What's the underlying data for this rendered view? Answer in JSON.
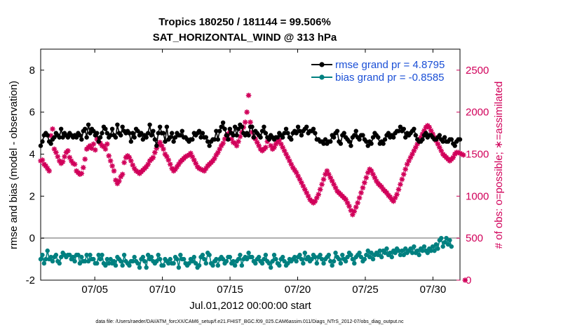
{
  "chart_data": {
    "type": "line",
    "title": [
      "Tropics 180250 / 181144 = 99.506%",
      "SAT_HORIZONTAL_WIND @ 313 hPa"
    ],
    "xlabel": "Jul.01,2012 00:00:00 start",
    "ylabel_left": "rmse and bias (model - observation)",
    "ylabel_right": "# of obs: o=possible; ∗=assimilated",
    "footer": "data file: /Users/raeder/DAI/ATM_forcXX/CAM6_setup/f.e21.FHIST_BGC.f09_025.CAM6assim.011/Diags_NTrS_2012-07/obs_diag_output.nc",
    "xlim": [
      1,
      32
    ],
    "ylim_left": [
      -2,
      9
    ],
    "ylim_right": [
      0,
      2750
    ],
    "x_ticks": [
      5,
      10,
      15,
      20,
      25,
      30
    ],
    "x_tick_labels": [
      "07/05",
      "07/10",
      "07/15",
      "07/20",
      "07/25",
      "07/30"
    ],
    "y_ticks_left": [
      -2,
      0,
      2,
      4,
      6,
      8
    ],
    "y_ticks_right": [
      0,
      500,
      1000,
      1500,
      2000,
      2500
    ],
    "legend": [
      "rmse grand pr = 4.8795",
      "bias grand pr = -0.8585"
    ],
    "colors": {
      "rmse": "#000000",
      "bias": "#008080",
      "obs": "#d1005a",
      "right_axis": "#d1005a",
      "legend_text": "#1a4fd6",
      "zero_line": "#b0b0b0"
    },
    "series": [
      {
        "name": "rmse",
        "values": [
          4.4,
          4.6,
          4.9,
          5.0,
          4.9,
          4.6,
          4.5,
          4.7,
          4.8,
          5.0,
          4.9,
          4.8,
          5.2,
          4.8,
          5.0,
          4.9,
          4.8,
          5.0,
          4.9,
          4.8,
          4.9,
          4.8,
          5.0,
          4.9,
          4.7,
          5.1,
          5.2,
          4.8,
          5.4,
          5.0,
          5.2,
          5.1,
          4.9,
          5.0,
          4.6,
          4.8,
          5.0,
          5.3,
          5.2,
          5.0,
          4.8,
          4.9,
          5.2,
          4.9,
          4.8,
          5.4,
          5.0,
          4.9,
          5.3,
          5.1,
          5.0,
          5.1,
          5.0,
          4.6,
          5.0,
          4.8,
          5.2,
          5.1,
          4.9,
          5.0,
          4.7,
          4.9,
          4.8,
          5.0,
          5.4,
          4.9,
          5.1,
          4.7,
          4.4,
          5.0,
          5.3,
          5.0,
          5.0,
          4.6,
          5.3,
          4.7,
          4.8,
          5.0,
          4.6,
          4.8,
          5.0,
          4.9,
          4.9,
          5.1,
          4.8,
          4.8,
          4.7,
          4.6,
          4.7,
          4.7,
          5.0,
          4.9,
          5.0,
          5.1,
          4.8,
          5.0,
          4.8,
          4.8,
          4.6,
          4.4,
          4.6,
          4.7,
          4.7,
          5.1,
          4.7,
          5.1,
          5.3,
          5.5,
          5.2,
          4.9,
          4.7,
          5.2,
          5.0,
          4.9,
          5.3,
          4.9,
          5.2,
          5.4,
          5.3,
          5.0,
          4.9,
          5.0,
          4.9,
          5.3,
          5.3,
          4.8,
          5.1,
          5.0,
          4.9,
          4.8,
          5.1,
          5.3,
          5.0,
          4.8,
          4.7,
          4.9,
          4.8,
          4.7,
          4.8,
          4.8,
          5.0,
          4.9,
          4.8,
          5.0,
          5.2,
          5.0,
          4.8,
          4.7,
          5.0,
          5.1,
          5.0,
          5.3,
          5.1,
          4.9,
          5.1,
          5.2,
          5.3,
          5.0,
          5.1,
          5.1,
          5.2,
          5.0,
          4.7,
          4.7,
          4.6,
          4.6,
          4.5,
          4.7,
          4.5,
          4.6,
          4.6,
          4.9,
          4.8,
          5.0,
          5.1,
          4.6,
          4.5,
          4.9,
          5.0,
          4.8,
          4.7,
          4.6,
          4.4,
          4.8,
          4.9,
          5.1,
          4.8,
          4.7,
          4.9,
          4.9,
          4.7,
          4.6,
          4.4,
          4.6,
          4.5,
          4.8,
          5.0,
          4.9,
          4.8,
          4.5,
          4.6,
          4.5,
          4.7,
          4.9,
          5.0,
          4.8,
          4.9,
          4.8,
          5.0,
          5.1,
          5.1,
          5.3,
          5.1,
          5.2,
          4.8,
          5.0,
          4.9,
          5.0,
          5.1,
          5.2,
          4.9,
          4.7,
          4.6,
          4.6,
          4.7,
          4.9,
          5.0,
          4.8,
          4.9,
          4.9,
          4.8,
          4.7,
          4.7,
          4.8,
          4.9,
          4.7,
          4.6,
          4.8,
          4.6,
          4.6,
          4.7,
          4.7,
          4.5,
          4.4,
          4.6,
          4.7,
          4.7
        ]
      },
      {
        "name": "bias",
        "values": [
          -1.0,
          -0.8,
          -1.2,
          -1.0,
          -0.6,
          -1.0,
          -0.9,
          -1.1,
          -0.9,
          -0.8,
          -1.1,
          -1.2,
          -0.9,
          -0.7,
          -0.8,
          -0.9,
          -0.8,
          -0.8,
          -1.0,
          -0.9,
          -1.1,
          -0.8,
          -0.8,
          -1.2,
          -0.9,
          -1.1,
          -1.1,
          -0.8,
          -1.1,
          -0.8,
          -1.0,
          -1.0,
          -1.2,
          -1.2,
          -0.8,
          -1.0,
          -0.8,
          -1.2,
          -1.3,
          -1.0,
          -1.2,
          -1.0,
          -1.2,
          -1.1,
          -1.3,
          -0.9,
          -1.0,
          -1.1,
          -1.3,
          -0.8,
          -1.1,
          -1.2,
          -1.3,
          -1.1,
          -1.1,
          -0.9,
          -1.1,
          -1.2,
          -1.4,
          -1.0,
          -0.9,
          -1.1,
          -1.4,
          -0.8,
          -1.0,
          -0.9,
          -1.1,
          -1.2,
          -1.1,
          -0.8,
          -1.0,
          -1.3,
          -1.3,
          -1.0,
          -1.1,
          -1.2,
          -1.0,
          -1.2,
          -1.2,
          -0.9,
          -1.0,
          -1.4,
          -0.8,
          -1.0,
          -1.0,
          -1.2,
          -1.3,
          -1.2,
          -1.0,
          -1.1,
          -0.9,
          -1.2,
          -1.4,
          -1.3,
          -0.9,
          -0.8,
          -1.0,
          -1.2,
          -0.7,
          -0.8,
          -1.2,
          -1.3,
          -1.1,
          -1.0,
          -1.3,
          -1.0,
          -0.9,
          -1.0,
          -1.2,
          -1.1,
          -0.9,
          -0.9,
          -1.2,
          -1.1,
          -1.3,
          -1.1,
          -1.0,
          -0.8,
          -1.3,
          -1.0,
          -0.9,
          -1.0,
          -0.7,
          -0.9,
          -0.9,
          -1.1,
          -1.2,
          -1.0,
          -0.9,
          -1.1,
          -1.2,
          -1.0,
          -0.8,
          -1.1,
          -1.2,
          -1.4,
          -1.1,
          -0.8,
          -1.0,
          -1.2,
          -1.3,
          -1.0,
          -0.9,
          -1.1,
          -1.3,
          -1.2,
          -1.0,
          -1.1,
          -1.0,
          -0.9,
          -1.1,
          -0.9,
          -0.8,
          -1.0,
          -1.2,
          -0.7,
          -1.0,
          -0.9,
          -1.1,
          -1.0,
          -0.8,
          -0.9,
          -1.2,
          -0.9,
          -0.8,
          -1.0,
          -1.2,
          -1.0,
          -0.9,
          -0.8,
          -1.1,
          -1.3,
          -1.1,
          -0.7,
          -0.9,
          -1.0,
          -1.2,
          -0.8,
          -1.0,
          -1.1,
          -0.9,
          -0.7,
          -0.8,
          -1.0,
          -1.2,
          -0.9,
          -0.8,
          -0.7,
          -0.9,
          -1.1,
          -1.0,
          -0.8,
          -0.6,
          -0.9,
          -0.7,
          -1.0,
          -0.8,
          -0.7,
          -0.8,
          -0.6,
          -0.9,
          -0.6,
          -0.7,
          -0.5,
          -0.8,
          -0.7,
          -0.9,
          -0.6,
          -0.7,
          -0.5,
          -0.6,
          -0.8,
          -0.6,
          -0.8,
          -0.5,
          -0.7,
          -0.6,
          -0.5,
          -0.7,
          -0.4,
          -0.7,
          -0.6,
          -0.8,
          -0.5,
          -0.6,
          -0.4,
          -0.6,
          -0.7,
          -0.5,
          -0.6,
          -0.4,
          -0.6,
          -0.3,
          -0.5,
          -0.1,
          0.0,
          -0.4,
          -0.2,
          0.0,
          -0.3,
          -0.1,
          -0.4
        ]
      },
      {
        "name": "obs_assimilated",
        "values": [
          1420,
          1430,
          1380,
          1360,
          1330,
          1300,
          1720,
          1800,
          1560,
          1520,
          1470,
          1420,
          1390,
          1410,
          1470,
          1520,
          1540,
          1460,
          1420,
          1390,
          1380,
          1300,
          1280,
          1260,
          1270,
          1340,
          1440,
          1560,
          1580,
          1600,
          1570,
          1620,
          1550,
          1680,
          1650,
          1630,
          1600,
          1590,
          1560,
          1620,
          1480,
          1420,
          1360,
          1300,
          1190,
          1150,
          1180,
          1230,
          1260,
          1400,
          1460,
          1480,
          1460,
          1420,
          1370,
          1330,
          1300,
          1290,
          1270,
          1290,
          1310,
          1330,
          1350,
          1380,
          1420,
          1440,
          1460,
          1520,
          1570,
          1610,
          1640,
          1600,
          1560,
          1500,
          1470,
          1430,
          1380,
          1330,
          1300,
          1320,
          1350,
          1380,
          1410,
          1430,
          1450,
          1470,
          1480,
          1490,
          1510,
          1470,
          1430,
          1390,
          1350,
          1330,
          1320,
          1310,
          1300,
          1330,
          1360,
          1380,
          1400,
          1420,
          1450,
          1490,
          1520,
          1560,
          1600,
          1630,
          1680,
          1720,
          1740,
          1760,
          1680,
          1640,
          1630,
          1600,
          1650,
          1710,
          1760,
          1820,
          1880,
          2000,
          2200,
          1880,
          1760,
          1700,
          1680,
          1640,
          1600,
          1560,
          1540,
          1560,
          1580,
          1650,
          1690,
          1600,
          1560,
          1580,
          1620,
          1650,
          1670,
          1620,
          1580,
          1540,
          1500,
          1460,
          1420,
          1380,
          1340,
          1310,
          1280,
          1240,
          1200,
          1160,
          1120,
          1080,
          1040,
          1000,
          960,
          940,
          920,
          940,
          980,
          1020,
          1080,
          1140,
          1200,
          1260,
          1300,
          1260,
          1220,
          1180,
          1140,
          1100,
          1060,
          1040,
          1020,
          1000,
          980,
          960,
          920,
          880,
          830,
          780,
          820,
          870,
          920,
          980,
          1040,
          1100,
          1160,
          1220,
          1280,
          1320,
          1300,
          1260,
          1220,
          1180,
          1150,
          1130,
          1110,
          1080,
          1060,
          1040,
          1010,
          990,
          960,
          940,
          980,
          1020,
          1080,
          1140,
          1200,
          1260,
          1320,
          1380,
          1420,
          1460,
          1500,
          1540,
          1580,
          1620,
          1660,
          1700,
          1740,
          1780,
          1820,
          1840,
          1820,
          1780,
          1740,
          1700,
          1660,
          1620,
          1580,
          1540,
          1500,
          1480,
          1460,
          1440,
          1420,
          1440,
          1460,
          1500,
          1520,
          1520,
          1510,
          1500,
          1490,
          0
        ]
      }
    ]
  }
}
